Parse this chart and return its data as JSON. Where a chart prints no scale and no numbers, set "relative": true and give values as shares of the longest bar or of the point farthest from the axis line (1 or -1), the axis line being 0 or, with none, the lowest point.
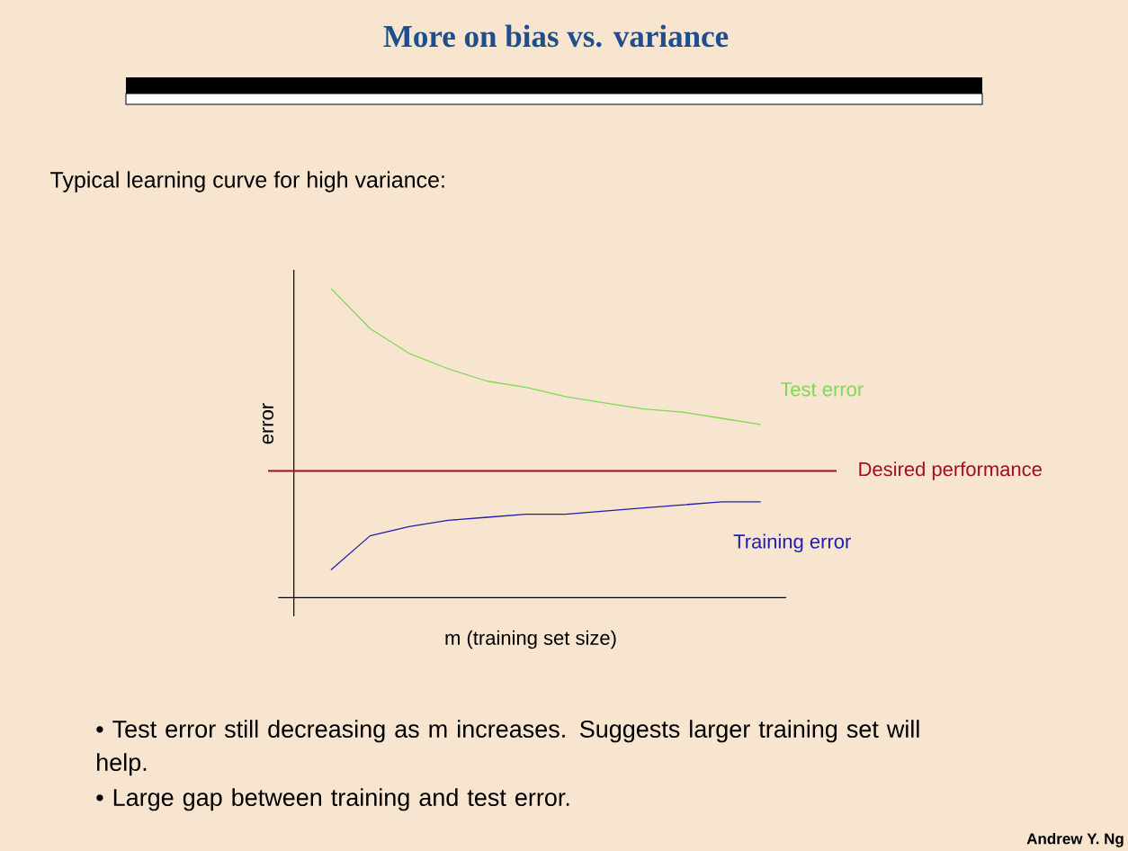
{
  "chart_data": {
    "type": "line",
    "title": "More on bias vs. variance",
    "subtitle": "Typical learning curve for high variance:",
    "xlabel": "m (training set size)",
    "ylabel": "error",
    "relative": true,
    "categories": [
      null,
      null,
      null,
      null,
      null,
      null,
      null,
      null,
      null,
      null,
      null,
      null
    ],
    "series": [
      {
        "name": "Test error",
        "color": "#7ed957",
        "values": [
          1,
          0.87,
          0.79,
          0.74,
          0.7,
          0.68,
          0.65,
          0.63,
          0.61,
          0.6,
          0.58,
          0.56
        ]
      },
      {
        "name": "Training error",
        "color": "#2020b0",
        "values": [
          0.09,
          0.2,
          0.23,
          0.25,
          0.26,
          0.27,
          0.27,
          0.28,
          0.29,
          0.3,
          0.31,
          0.31
        ]
      }
    ],
    "ref_lines": [
      {
        "axis": "y",
        "value": 0.41,
        "label": "Desired performance",
        "color": "#a0101e"
      }
    ],
    "annotations": [
      "• Test error still decreasing as m increases.  Suggests larger training set will help.",
      "• Large gap between training and test error.",
      "Andrew Y. Ng"
    ]
  }
}
